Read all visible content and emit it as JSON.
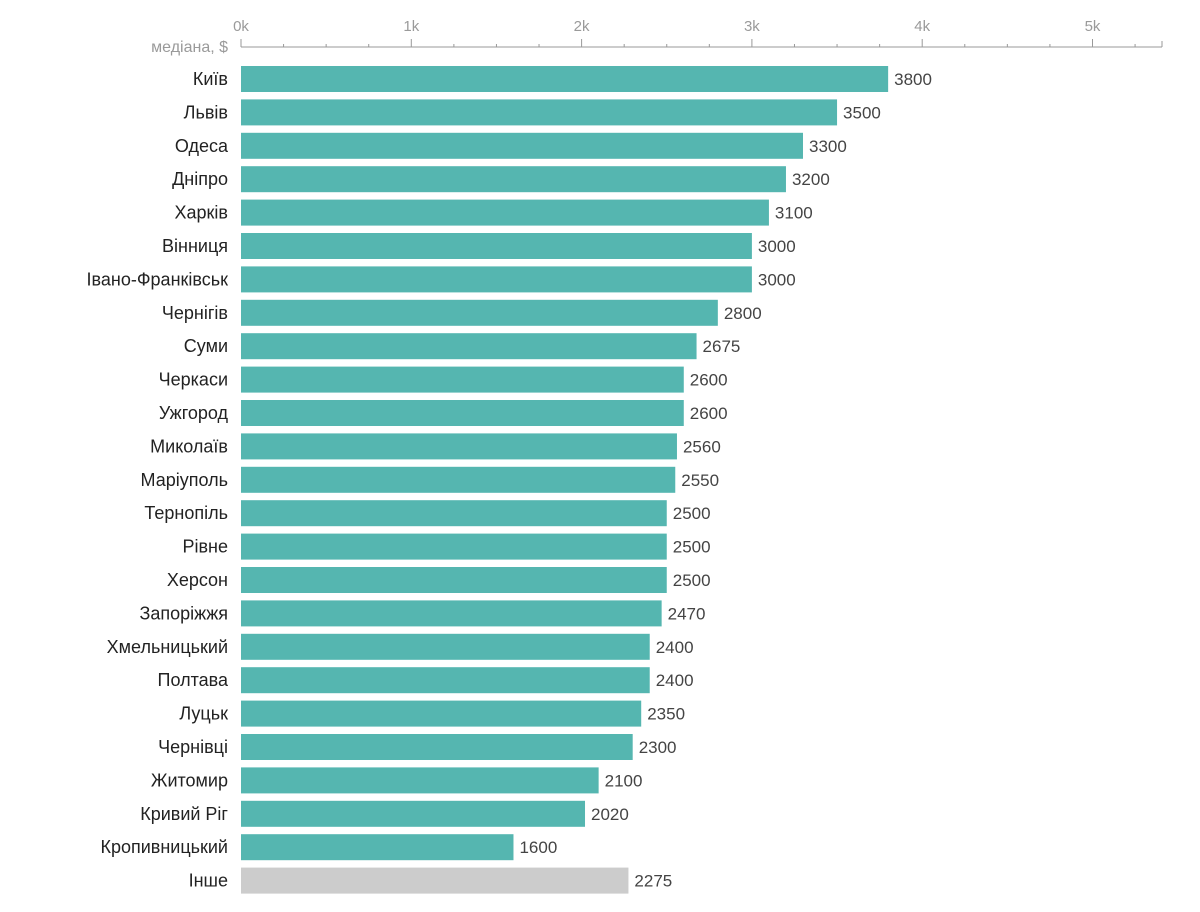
{
  "chart_data": {
    "type": "bar",
    "orientation": "horizontal",
    "axis_title": "медіана, $",
    "xlim": [
      0,
      5400
    ],
    "ticks": [
      0,
      1000,
      2000,
      3000,
      4000,
      5000
    ],
    "tick_labels": [
      "0k",
      "1k",
      "2k",
      "3k",
      "4k",
      "5k"
    ],
    "categories": [
      "Київ",
      "Львів",
      "Одеса",
      "Дніпро",
      "Харків",
      "Вінниця",
      "Івано-Франківськ",
      "Чернігів",
      "Суми",
      "Черкаси",
      "Ужгород",
      "Миколаїв",
      "Маріуполь",
      "Тернопіль",
      "Рівне",
      "Херсон",
      "Запоріжжя",
      "Хмельницький",
      "Полтава",
      "Луцьк",
      "Чернівці",
      "Житомир",
      "Кривий Ріг",
      "Кропивницький",
      "Інше"
    ],
    "values": [
      3800,
      3500,
      3300,
      3200,
      3100,
      3000,
      3000,
      2800,
      2675,
      2600,
      2600,
      2560,
      2550,
      2500,
      2500,
      2500,
      2470,
      2400,
      2400,
      2350,
      2300,
      2100,
      2020,
      1600,
      2275
    ],
    "bar_color": "#55b6b0",
    "other_color": "#cccccc",
    "axis_color": "#999999",
    "grid": false,
    "legend": "none"
  }
}
